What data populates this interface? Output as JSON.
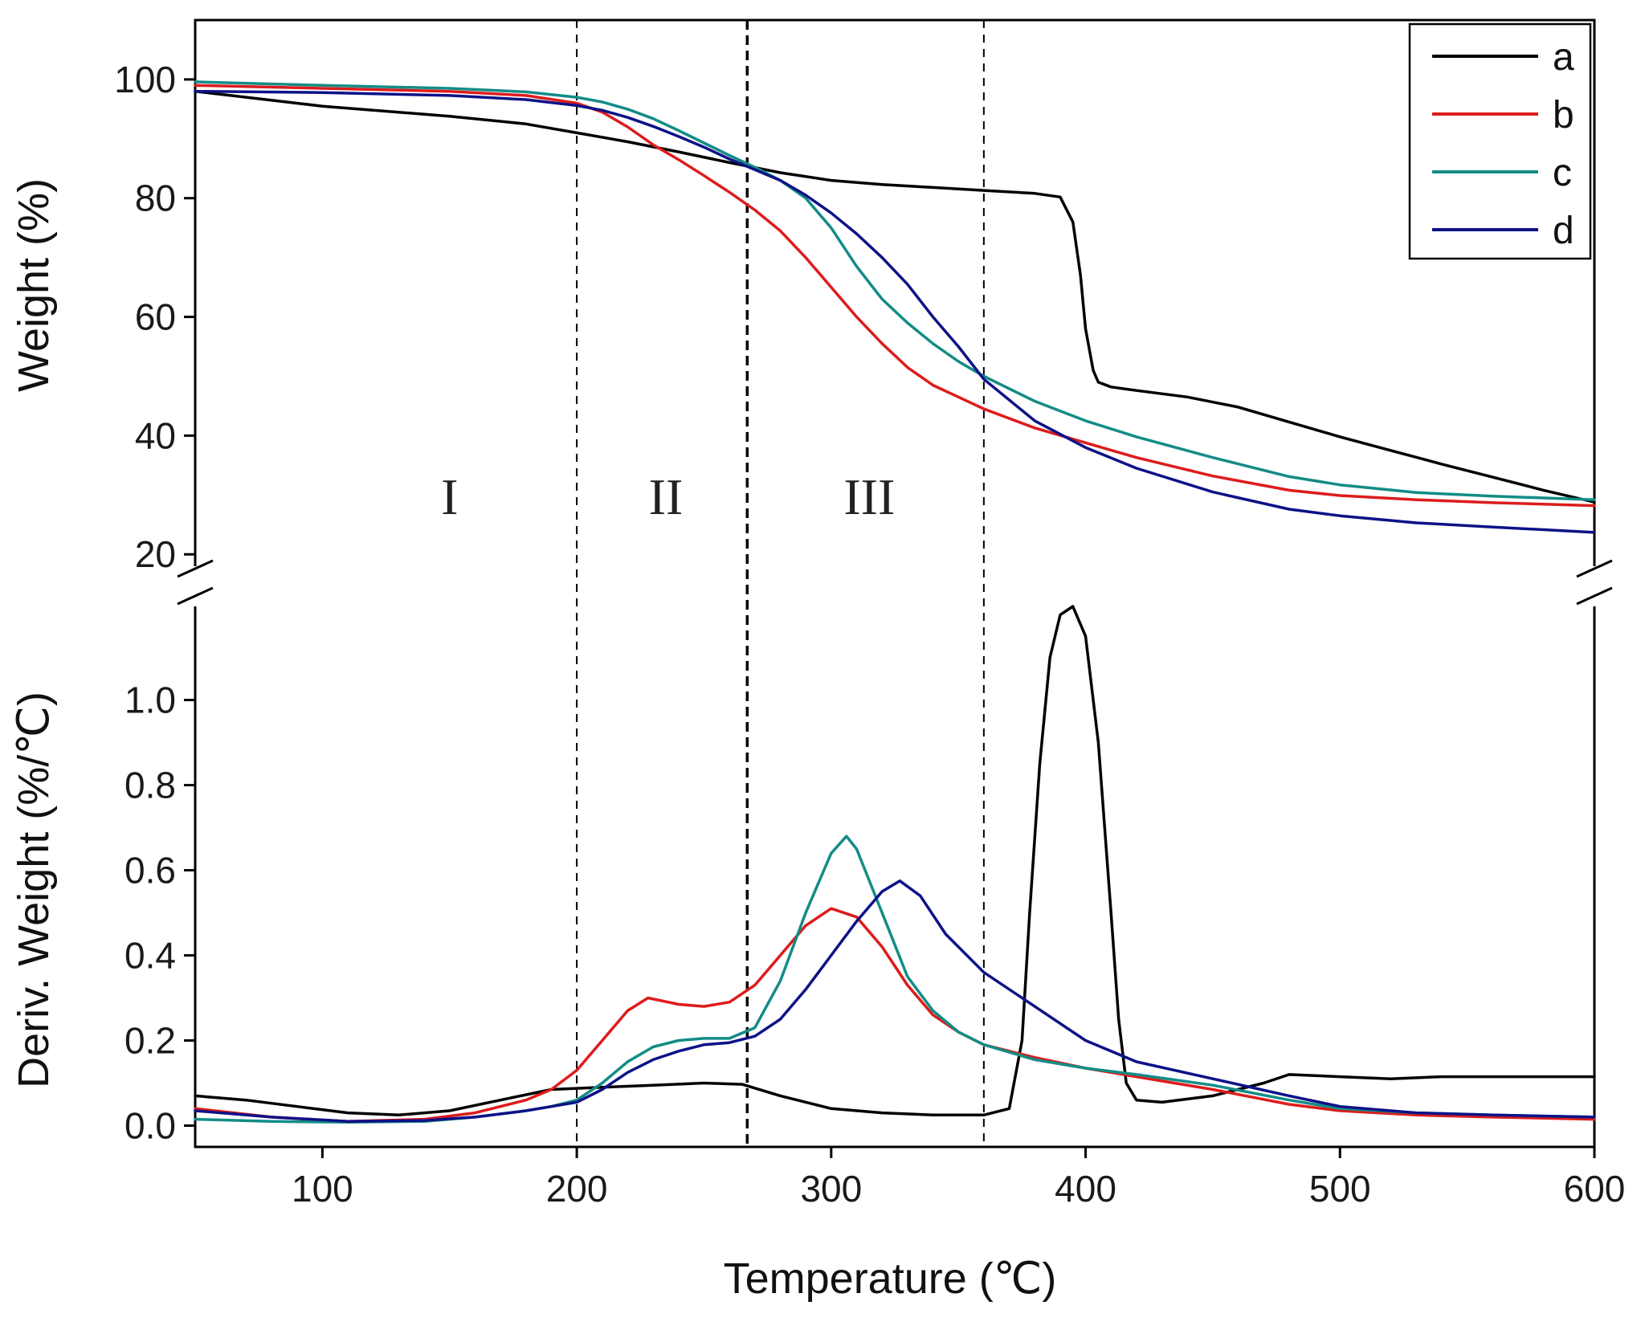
{
  "chart_data": [
    {
      "panel": "top",
      "type": "line",
      "ylabel": "Weight (%)",
      "xlim": [
        50,
        600
      ],
      "ylim": [
        18,
        110
      ],
      "yticks": [
        20,
        40,
        60,
        80,
        100
      ],
      "series": [
        {
          "name": "a",
          "color": "#000000",
          "x": [
            50,
            100,
            150,
            180,
            200,
            220,
            240,
            260,
            280,
            300,
            320,
            340,
            360,
            380,
            390,
            395,
            398,
            400,
            403,
            405,
            410,
            420,
            440,
            460,
            480,
            500,
            520,
            540,
            560,
            580,
            600
          ],
          "values": [
            98,
            95.5,
            93.8,
            92.5,
            91,
            89.5,
            87.8,
            86,
            84.3,
            83,
            82.3,
            81.8,
            81.3,
            80.8,
            80.2,
            76,
            67,
            58,
            51,
            49,
            48.2,
            47.6,
            46.5,
            44.8,
            42.3,
            39.8,
            37.5,
            35.2,
            33,
            30.8,
            28.8
          ]
        },
        {
          "name": "b",
          "color": "#dd1c1c",
          "x": [
            50,
            100,
            150,
            180,
            200,
            210,
            220,
            230,
            240,
            250,
            260,
            270,
            280,
            290,
            300,
            310,
            320,
            330,
            340,
            350,
            360,
            380,
            400,
            420,
            450,
            480,
            500,
            530,
            560,
            600
          ],
          "values": [
            99,
            98.5,
            98,
            97.3,
            96,
            94.5,
            92,
            89,
            86.5,
            83.8,
            81,
            78,
            74.5,
            70,
            65,
            60,
            55.5,
            51.5,
            48.5,
            46.5,
            44.5,
            41.3,
            38.8,
            36.3,
            33.2,
            30.8,
            29.9,
            29.2,
            28.7,
            28.2
          ]
        },
        {
          "name": "c",
          "color": "#138c86",
          "x": [
            50,
            100,
            150,
            180,
            200,
            210,
            220,
            230,
            240,
            250,
            260,
            270,
            280,
            290,
            300,
            310,
            320,
            330,
            340,
            350,
            360,
            380,
            400,
            420,
            450,
            480,
            500,
            530,
            560,
            600
          ],
          "values": [
            99.6,
            99,
            98.5,
            97.9,
            97,
            96.2,
            95,
            93.4,
            91.4,
            89.3,
            87.2,
            85.2,
            83,
            80,
            75,
            68.5,
            63,
            59,
            55.5,
            52.5,
            50,
            45.8,
            42.5,
            39.8,
            36.3,
            33.1,
            31.7,
            30.4,
            29.8,
            29.2
          ]
        },
        {
          "name": "d",
          "color": "#0d1287",
          "x": [
            50,
            100,
            150,
            180,
            200,
            210,
            220,
            230,
            240,
            250,
            260,
            270,
            280,
            290,
            300,
            310,
            320,
            330,
            340,
            350,
            360,
            380,
            400,
            420,
            450,
            480,
            500,
            530,
            560,
            600
          ],
          "values": [
            98,
            97.8,
            97.3,
            96.6,
            95.6,
            94.8,
            93.6,
            92.1,
            90.4,
            88.6,
            86.6,
            84.8,
            83,
            80.5,
            77.5,
            74,
            70,
            65.5,
            60,
            55,
            49.5,
            42.5,
            38,
            34.5,
            30.5,
            27.6,
            26.5,
            25.3,
            24.6,
            23.7
          ]
        }
      ]
    },
    {
      "panel": "bottom",
      "type": "line",
      "ylabel": "Deriv. Weight (%/℃)",
      "xlabel": "Temperature (℃)",
      "xlim": [
        50,
        600
      ],
      "ylim": [
        -0.05,
        1.22
      ],
      "xticks": [
        100,
        200,
        300,
        400,
        500,
        600
      ],
      "yticks": [
        0.0,
        0.2,
        0.4,
        0.6,
        0.8,
        1.0
      ],
      "series": [
        {
          "name": "a",
          "color": "#000000",
          "x": [
            50,
            70,
            90,
            110,
            130,
            150,
            170,
            190,
            210,
            230,
            250,
            265,
            280,
            300,
            320,
            340,
            360,
            370,
            375,
            378,
            382,
            386,
            390,
            395,
            400,
            405,
            410,
            413,
            416,
            420,
            430,
            450,
            470,
            480,
            500,
            520,
            540,
            560,
            600
          ],
          "values": [
            0.07,
            0.06,
            0.045,
            0.03,
            0.025,
            0.035,
            0.06,
            0.085,
            0.09,
            0.095,
            0.1,
            0.097,
            0.07,
            0.04,
            0.03,
            0.025,
            0.025,
            0.04,
            0.2,
            0.5,
            0.85,
            1.1,
            1.2,
            1.22,
            1.15,
            0.9,
            0.5,
            0.25,
            0.1,
            0.06,
            0.055,
            0.07,
            0.1,
            0.12,
            0.115,
            0.11,
            0.115,
            0.115,
            0.115
          ]
        },
        {
          "name": "b",
          "color": "#dd1c1c",
          "x": [
            50,
            80,
            110,
            140,
            160,
            180,
            190,
            200,
            210,
            220,
            228,
            240,
            250,
            260,
            270,
            280,
            290,
            300,
            310,
            320,
            330,
            340,
            350,
            360,
            380,
            400,
            420,
            450,
            480,
            500,
            530,
            560,
            600
          ],
          "values": [
            0.04,
            0.02,
            0.01,
            0.015,
            0.03,
            0.06,
            0.085,
            0.13,
            0.2,
            0.27,
            0.3,
            0.285,
            0.28,
            0.29,
            0.33,
            0.4,
            0.47,
            0.51,
            0.49,
            0.42,
            0.33,
            0.26,
            0.22,
            0.19,
            0.16,
            0.135,
            0.115,
            0.085,
            0.05,
            0.035,
            0.025,
            0.02,
            0.015
          ]
        },
        {
          "name": "c",
          "color": "#138c86",
          "x": [
            50,
            80,
            110,
            140,
            160,
            180,
            190,
            200,
            210,
            220,
            230,
            240,
            250,
            260,
            270,
            280,
            290,
            300,
            306,
            310,
            320,
            330,
            340,
            350,
            360,
            380,
            400,
            420,
            450,
            480,
            500,
            530,
            560,
            600
          ],
          "values": [
            0.015,
            0.01,
            0.008,
            0.01,
            0.02,
            0.035,
            0.045,
            0.06,
            0.1,
            0.15,
            0.185,
            0.2,
            0.205,
            0.205,
            0.23,
            0.34,
            0.5,
            0.64,
            0.68,
            0.65,
            0.5,
            0.35,
            0.27,
            0.22,
            0.19,
            0.155,
            0.135,
            0.12,
            0.095,
            0.06,
            0.04,
            0.03,
            0.025,
            0.02
          ]
        },
        {
          "name": "d",
          "color": "#0d1287",
          "x": [
            50,
            80,
            110,
            140,
            160,
            180,
            190,
            200,
            210,
            220,
            230,
            240,
            250,
            260,
            270,
            280,
            290,
            300,
            310,
            320,
            327,
            335,
            345,
            360,
            380,
            400,
            420,
            450,
            480,
            500,
            530,
            560,
            600
          ],
          "values": [
            0.035,
            0.02,
            0.01,
            0.012,
            0.02,
            0.035,
            0.045,
            0.055,
            0.085,
            0.125,
            0.155,
            0.175,
            0.19,
            0.195,
            0.21,
            0.25,
            0.32,
            0.4,
            0.48,
            0.55,
            0.575,
            0.54,
            0.45,
            0.36,
            0.28,
            0.2,
            0.15,
            0.11,
            0.07,
            0.045,
            0.03,
            0.025,
            0.02
          ]
        }
      ]
    }
  ],
  "regions": [
    {
      "label": "I",
      "x": 150
    },
    {
      "label": "II",
      "x": 235
    },
    {
      "label": "III",
      "x": 315
    }
  ],
  "dividers": [
    200,
    267,
    360
  ],
  "legend": {
    "position": "top-right",
    "entries": [
      {
        "name": "a",
        "color": "#000000"
      },
      {
        "name": "b",
        "color": "#dd1c1c"
      },
      {
        "name": "c",
        "color": "#138c86"
      },
      {
        "name": "d",
        "color": "#0d1287"
      }
    ]
  }
}
